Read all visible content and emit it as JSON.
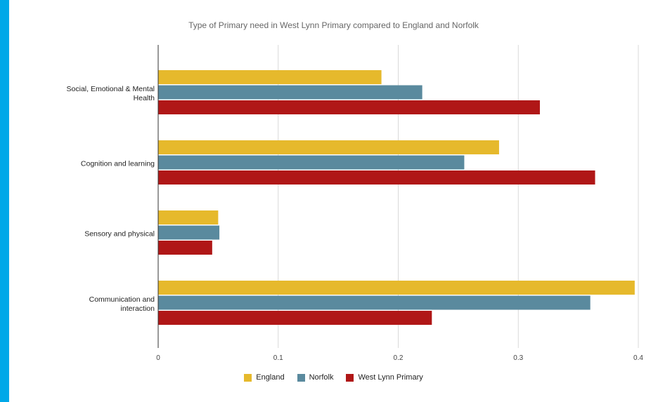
{
  "chart_data": {
    "type": "bar",
    "orientation": "horizontal",
    "title": "Type of Primary need in West Lynn Primary compared to England and Norfolk",
    "xlabel": "",
    "ylabel": "",
    "categories": [
      "Social, Emotional & Mental Health",
      "Cognition and learning",
      "Sensory and physical",
      "Communication and interaction"
    ],
    "series": [
      {
        "name": "England",
        "color": "#e6b92c",
        "values": [
          0.186,
          0.284,
          0.05,
          0.397
        ]
      },
      {
        "name": "Norfolk",
        "color": "#5a8a9e",
        "values": [
          0.22,
          0.255,
          0.051,
          0.36
        ]
      },
      {
        "name": "West Lynn Primary",
        "color": "#b01717",
        "values": [
          0.318,
          0.364,
          0.045,
          0.228
        ]
      }
    ],
    "xlim": [
      0,
      0.4
    ],
    "xticks": [
      "0",
      "0.1",
      "0.2",
      "0.3",
      "0.4"
    ],
    "grid": true,
    "legend_position": "bottom"
  }
}
